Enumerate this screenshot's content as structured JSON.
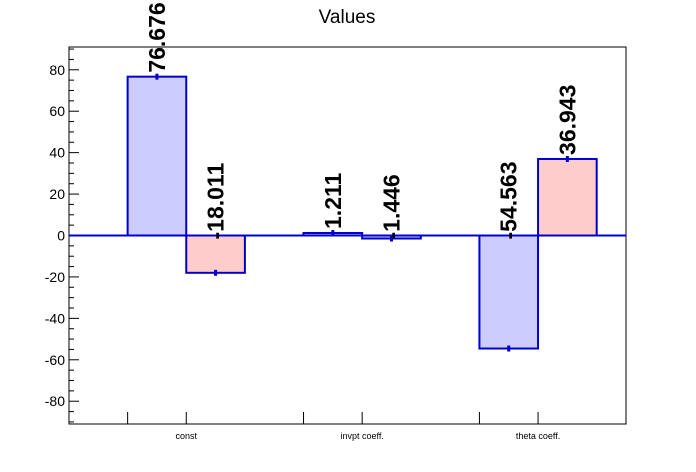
{
  "chart_data": {
    "type": "bar",
    "title": "Values",
    "xlabel": "",
    "ylabel": "",
    "categories": [
      "const",
      "invpt coeff.",
      "theta coeff."
    ],
    "series": [
      {
        "values": [
          76.676,
          1.211,
          -54.563
        ]
      },
      {
        "values": [
          -18.011,
          -1.446,
          36.943
        ]
      }
    ],
    "bars": [
      {
        "value": 76.676,
        "label": "76.676",
        "fill": "#ccccff"
      },
      {
        "value": -18.011,
        "label": "-18.011",
        "fill": "#ffcccc"
      },
      {
        "value": 1.211,
        "label": "1.211",
        "fill": "#ccccff"
      },
      {
        "value": -1.446,
        "label": "-1.446",
        "fill": "#ccccff"
      },
      {
        "value": -54.563,
        "label": "-54.563",
        "fill": "#ccccff"
      },
      {
        "value": 36.943,
        "label": "36.943",
        "fill": "#ffcccc"
      }
    ],
    "ylim": [
      -91,
      91
    ],
    "yticks": [
      "-80",
      "-60",
      "-40",
      "-20",
      "0",
      "20",
      "40",
      "60",
      "80"
    ],
    "grid": false,
    "legend": "none",
    "colors": {
      "bar_edge": "#0000cc",
      "zero_line": "#0000cc",
      "axis": "#000000"
    }
  }
}
